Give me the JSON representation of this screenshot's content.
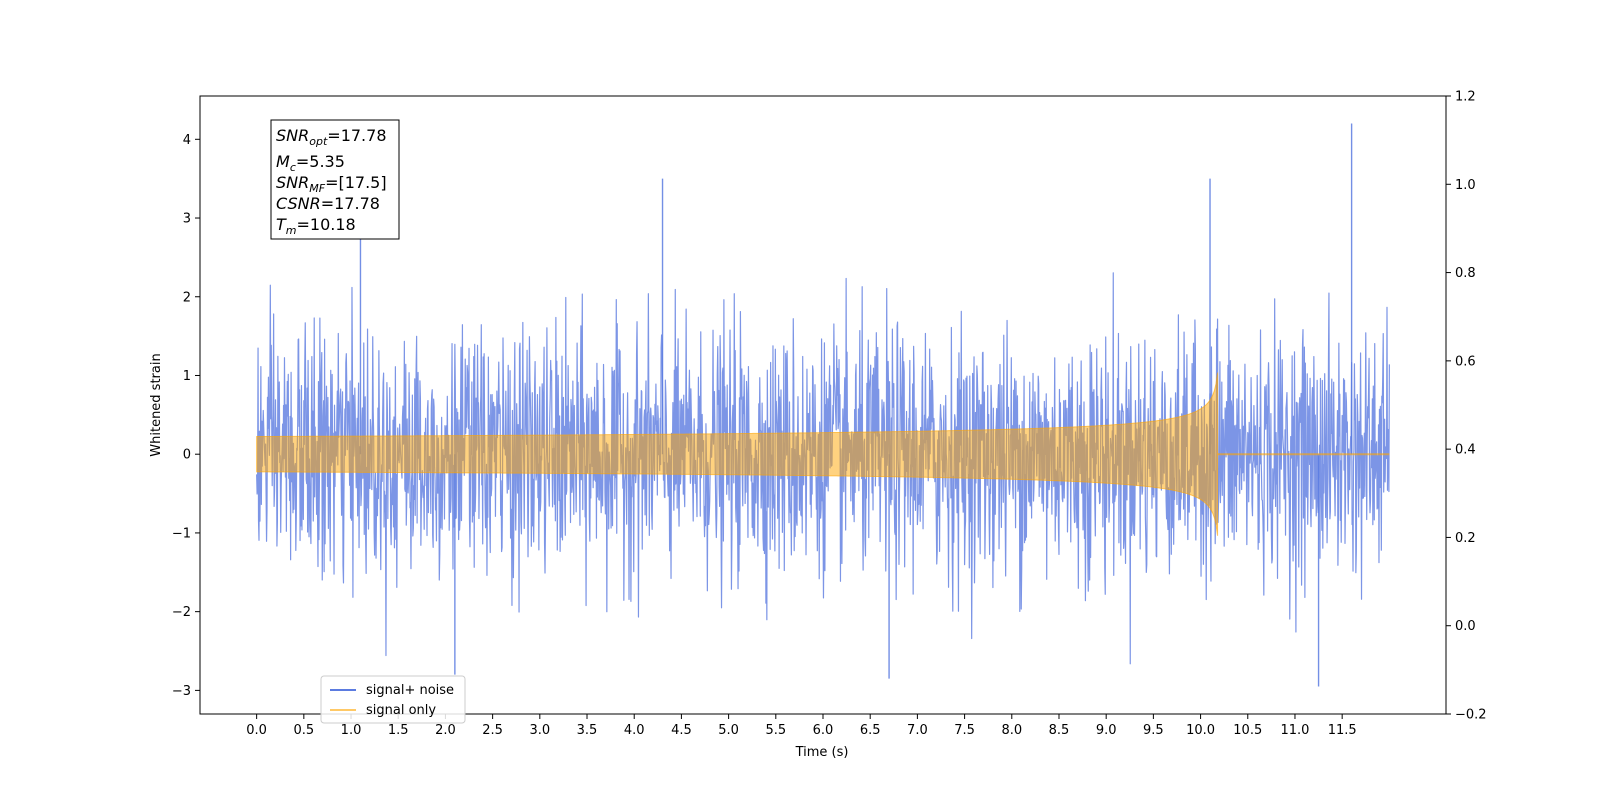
{
  "chart_data": {
    "type": "line",
    "title": "",
    "xlabel": "Time (s)",
    "ylabel": "Whitened strain",
    "xlim": [
      -0.6,
      12.6
    ],
    "ylim": [
      -3.3,
      4.55
    ],
    "y2lim": [
      -0.2,
      1.2
    ],
    "x_ticks": [
      "0.0",
      "0.5",
      "1.0",
      "1.5",
      "2.0",
      "2.5",
      "3.0",
      "3.5",
      "4.0",
      "4.5",
      "5.0",
      "5.5",
      "6.0",
      "6.5",
      "7.0",
      "7.5",
      "8.0",
      "8.5",
      "9.0",
      "9.5",
      "10.0",
      "10.5",
      "11.0",
      "11.5"
    ],
    "y_ticks": [
      "−3",
      "−2",
      "−1",
      "0",
      "1",
      "2",
      "3",
      "4"
    ],
    "y2_ticks": [
      "−0.2",
      "0.0",
      "0.2",
      "0.4",
      "0.6",
      "0.8",
      "1.0",
      "1.2"
    ],
    "grid": false,
    "legend_placement": "lower-left",
    "series": [
      {
        "name": "signal+ noise",
        "color": "#5b7be0",
        "t_range": [
          0.0,
          12.0
        ],
        "noise_std": 0.75,
        "notable_peaks": [
          [
            1.1,
            2.75
          ],
          [
            4.3,
            3.5
          ],
          [
            10.1,
            3.5
          ],
          [
            11.6,
            4.2
          ]
        ],
        "notable_troughs": [
          [
            2.1,
            -2.8
          ],
          [
            6.7,
            -2.85
          ],
          [
            11.25,
            -2.95
          ]
        ]
      },
      {
        "name": "signal only",
        "color": "#ffa500",
        "t_range": [
          0.0,
          12.0
        ],
        "merger_time": 10.18,
        "envelope_start": 0.05,
        "envelope_peak": 1.05
      }
    ],
    "annotation": {
      "lines": [
        {
          "base": "SNR",
          "sub": "opt",
          "value": "=17.78"
        },
        {
          "base": "M",
          "sub": "c",
          "value": "=5.35"
        },
        {
          "base": "SNR",
          "sub": "MF",
          "value": "=[17.5]"
        },
        {
          "base": "CSNR",
          "sub": "",
          "value": "=17.78"
        },
        {
          "base": "T",
          "sub": "m",
          "value": "=10.18"
        }
      ]
    }
  }
}
